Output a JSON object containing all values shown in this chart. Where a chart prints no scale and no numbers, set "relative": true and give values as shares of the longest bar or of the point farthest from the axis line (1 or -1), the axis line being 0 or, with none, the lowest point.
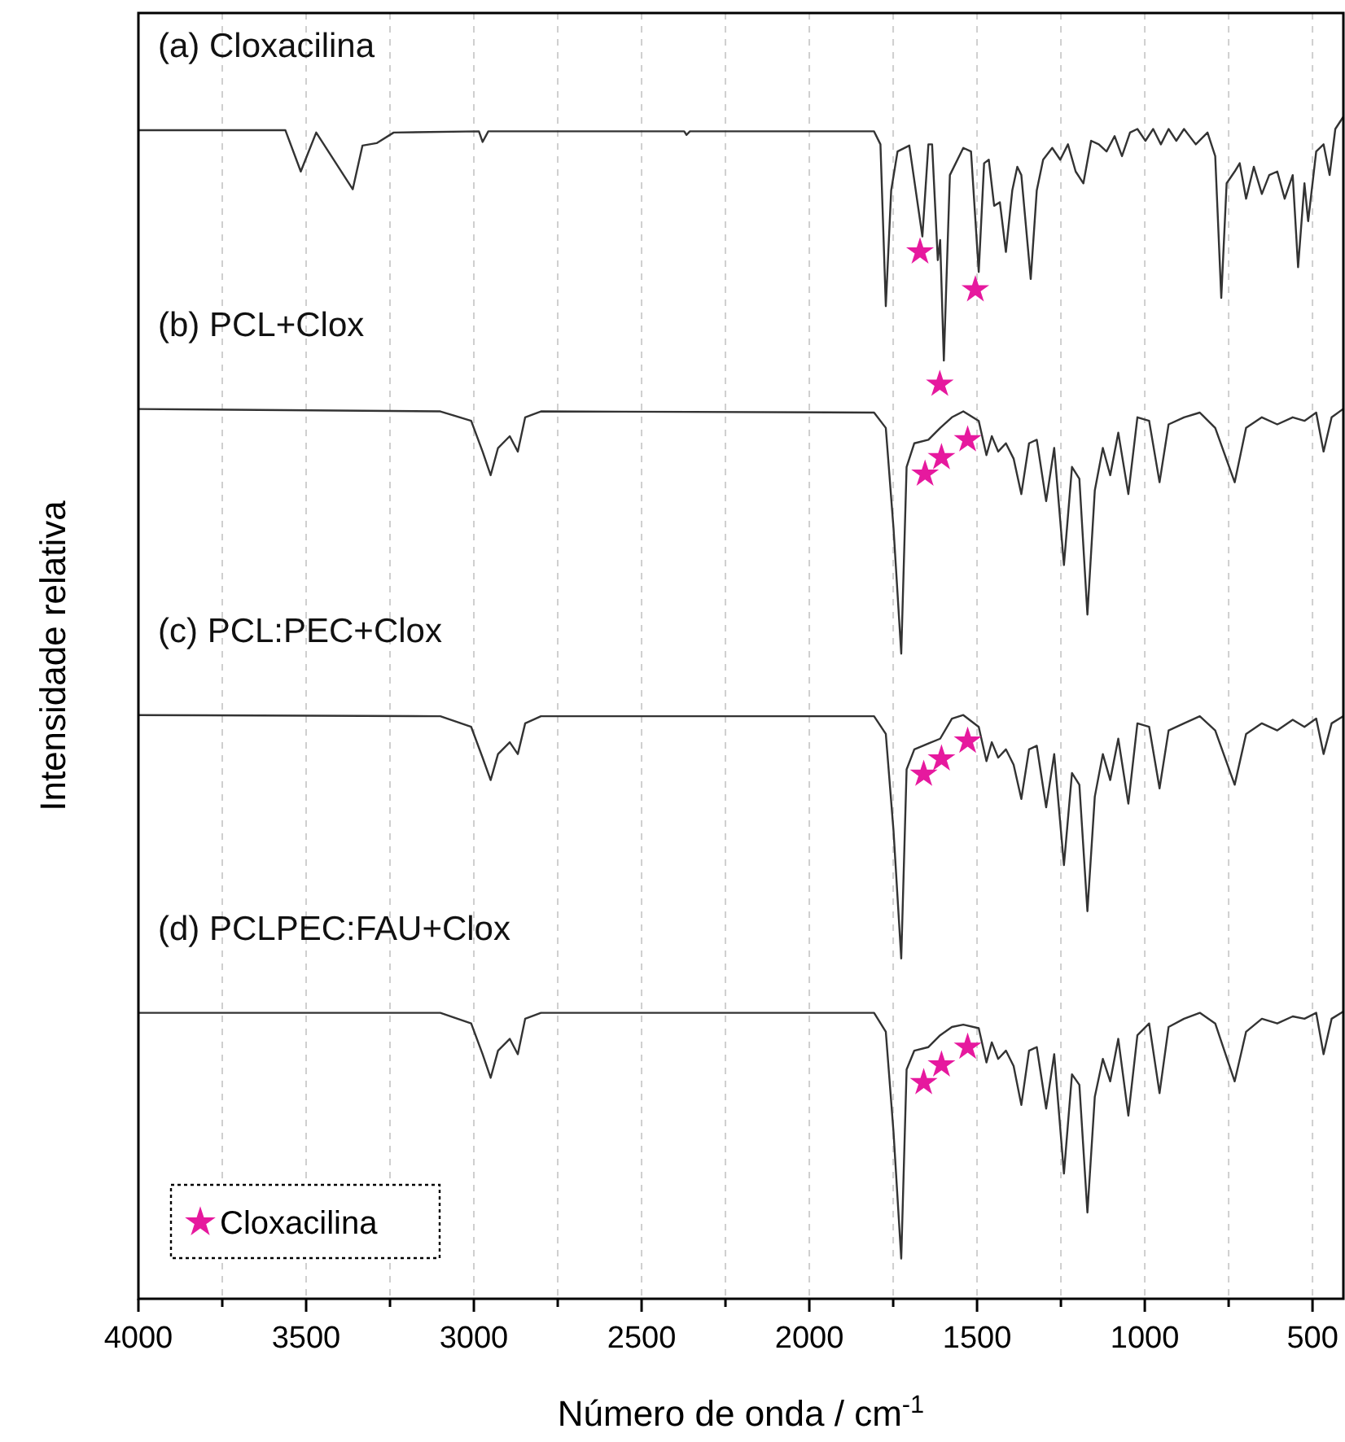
{
  "chart_data": {
    "type": "line",
    "relative": true,
    "xlabel": "Número de onda / cm$^{-1}$",
    "ylabel": "Intensidade relativa",
    "xlim": [
      4000,
      408
    ],
    "xticks": [
      4000,
      {
        "value": 3750,
        "label": null
      },
      3500,
      {
        "value": 3250,
        "label": null
      },
      3000,
      {
        "value": 2750,
        "label": null
      },
      2500,
      {
        "value": 2250,
        "label": null
      },
      2000,
      {
        "value": 1750,
        "label": null
      },
      1500,
      {
        "value": 1250,
        "label": null
      },
      1000,
      {
        "value": 750,
        "label": null
      },
      500
    ],
    "grid": "x",
    "legend": "bottom left",
    "line_style": "solid",
    "marker": "none",
    "series": [
      {
        "name": "(a) Cloxacilina",
        "color": "#333333",
        "x": [
          4000,
          3562,
          3516,
          3470,
          3361,
          3332,
          3290,
          3239,
          2985,
          2974,
          2957,
          2373,
          2366,
          2356,
          1807,
          1788,
          1772,
          1756,
          1737,
          1702,
          1663,
          1645,
          1634,
          1617,
          1610,
          1599,
          1581,
          1541,
          1518,
          1495,
          1479,
          1465,
          1449,
          1432,
          1414,
          1395,
          1380,
          1368,
          1340,
          1322,
          1303,
          1276,
          1252,
          1229,
          1206,
          1183,
          1160,
          1137,
          1114,
          1090,
          1068,
          1044,
          1022,
          998,
          975,
          952,
          929,
          906,
          883,
          848,
          813,
          790,
          772,
          756,
          732,
          717,
          698,
          675,
          651,
          629,
          605,
          583,
          559,
          543,
          524,
          513,
          489,
          467,
          449,
          432,
          409
        ],
        "values": [
          0.989,
          0.989,
          0.954,
          0.987,
          0.939,
          0.976,
          0.978,
          0.987,
          0.988,
          0.979,
          0.988,
          0.988,
          0.985,
          0.988,
          0.988,
          0.977,
          0.84,
          0.938,
          0.971,
          0.976,
          0.899,
          0.977,
          0.977,
          0.879,
          0.896,
          0.794,
          0.951,
          0.974,
          0.971,
          0.869,
          0.961,
          0.964,
          0.925,
          0.928,
          0.886,
          0.938,
          0.958,
          0.951,
          0.863,
          0.938,
          0.964,
          0.974,
          0.964,
          0.977,
          0.954,
          0.944,
          0.98,
          0.977,
          0.971,
          0.984,
          0.967,
          0.987,
          0.99,
          0.98,
          0.99,
          0.977,
          0.99,
          0.98,
          0.99,
          0.977,
          0.987,
          0.967,
          0.847,
          0.944,
          0.954,
          0.961,
          0.931,
          0.958,
          0.935,
          0.951,
          0.954,
          0.931,
          0.951,
          0.873,
          0.944,
          0.912,
          0.971,
          0.977,
          0.951,
          0.99,
          1
        ]
      },
      {
        "name": "(b) PCL+Clox",
        "color": "#333333",
        "x": [
          4000,
          3100,
          3008,
          2974,
          2950,
          2928,
          2893,
          2869,
          2847,
          2800,
          1807,
          1772,
          1749,
          1726,
          1710,
          1687,
          1645,
          1610,
          1575,
          1541,
          1495,
          1472,
          1456,
          1437,
          1414,
          1391,
          1368,
          1345,
          1322,
          1294,
          1270,
          1241,
          1217,
          1195,
          1171,
          1149,
          1125,
          1103,
          1079,
          1049,
          1022,
          987,
          956,
          929,
          883,
          836,
          790,
          732,
          698,
          651,
          605,
          559,
          524,
          489,
          467,
          443,
          409
        ],
        "values": [
          0.753,
          0.751,
          0.743,
          0.717,
          0.697,
          0.72,
          0.73,
          0.717,
          0.746,
          0.751,
          0.75,
          0.737,
          0.652,
          0.546,
          0.704,
          0.724,
          0.727,
          0.737,
          0.746,
          0.751,
          0.743,
          0.714,
          0.73,
          0.717,
          0.724,
          0.711,
          0.681,
          0.724,
          0.727,
          0.675,
          0.72,
          0.621,
          0.704,
          0.694,
          0.579,
          0.684,
          0.72,
          0.697,
          0.733,
          0.681,
          0.746,
          0.743,
          0.691,
          0.74,
          0.746,
          0.75,
          0.737,
          0.691,
          0.737,
          0.746,
          0.74,
          0.746,
          0.743,
          0.75,
          0.717,
          0.746,
          0.753
        ]
      },
      {
        "name": "(c) PCL:PEC+Clox",
        "color": "#333333",
        "x": [
          4000,
          3100,
          3008,
          2974,
          2950,
          2928,
          2893,
          2869,
          2847,
          2800,
          2373,
          1807,
          1772,
          1749,
          1726,
          1710,
          1687,
          1645,
          1610,
          1575,
          1541,
          1495,
          1472,
          1456,
          1437,
          1414,
          1391,
          1368,
          1345,
          1322,
          1294,
          1270,
          1241,
          1217,
          1195,
          1171,
          1149,
          1125,
          1103,
          1079,
          1049,
          1022,
          987,
          956,
          929,
          883,
          836,
          790,
          732,
          698,
          651,
          605,
          559,
          524,
          489,
          467,
          443,
          409
        ],
        "values": [
          0.494,
          0.493,
          0.484,
          0.458,
          0.439,
          0.461,
          0.471,
          0.461,
          0.487,
          0.493,
          0.493,
          0.493,
          0.478,
          0.396,
          0.288,
          0.448,
          0.465,
          0.47,
          0.474,
          0.491,
          0.494,
          0.484,
          0.455,
          0.471,
          0.458,
          0.465,
          0.452,
          0.423,
          0.465,
          0.468,
          0.416,
          0.461,
          0.367,
          0.445,
          0.435,
          0.328,
          0.425,
          0.461,
          0.439,
          0.474,
          0.419,
          0.487,
          0.484,
          0.432,
          0.481,
          0.487,
          0.493,
          0.481,
          0.435,
          0.478,
          0.487,
          0.481,
          0.49,
          0.484,
          0.491,
          0.461,
          0.487,
          0.493
        ]
      },
      {
        "name": "(d) PCLPEC:FAU+Clox",
        "color": "#333333",
        "x": [
          4000,
          3100,
          3008,
          2974,
          2950,
          2928,
          2893,
          2869,
          2847,
          2800,
          1807,
          1772,
          1749,
          1726,
          1710,
          1687,
          1645,
          1610,
          1575,
          1541,
          1495,
          1472,
          1456,
          1437,
          1414,
          1391,
          1368,
          1345,
          1322,
          1294,
          1270,
          1241,
          1217,
          1195,
          1171,
          1149,
          1125,
          1103,
          1079,
          1049,
          1022,
          987,
          956,
          929,
          883,
          836,
          790,
          732,
          698,
          651,
          605,
          559,
          524,
          489,
          467,
          443,
          409
        ],
        "values": [
          0.242,
          0.242,
          0.233,
          0.207,
          0.187,
          0.21,
          0.22,
          0.207,
          0.237,
          0.242,
          0.242,
          0.226,
          0.141,
          0.034,
          0.194,
          0.21,
          0.213,
          0.223,
          0.23,
          0.232,
          0.229,
          0.2,
          0.217,
          0.203,
          0.21,
          0.197,
          0.164,
          0.21,
          0.213,
          0.161,
          0.207,
          0.106,
          0.19,
          0.181,
          0.073,
          0.171,
          0.203,
          0.184,
          0.22,
          0.155,
          0.223,
          0.233,
          0.174,
          0.23,
          0.237,
          0.242,
          0.233,
          0.184,
          0.226,
          0.237,
          0.233,
          0.239,
          0.237,
          0.242,
          0.207,
          0.237,
          0.243
        ]
      },
      {
        "name": "Cloxacilina",
        "type": "scatter",
        "marker": "star",
        "color": "#e6199e",
        "x": [
          1670,
          1505,
          1611,
          1655,
          1606,
          1528,
          1659,
          1606,
          1528,
          1659,
          1606,
          1528
        ],
        "values": [
          0.886,
          0.854,
          0.774,
          0.698,
          0.712,
          0.727,
          0.444,
          0.457,
          0.472,
          0.183,
          0.198,
          0.213
        ]
      }
    ]
  }
}
